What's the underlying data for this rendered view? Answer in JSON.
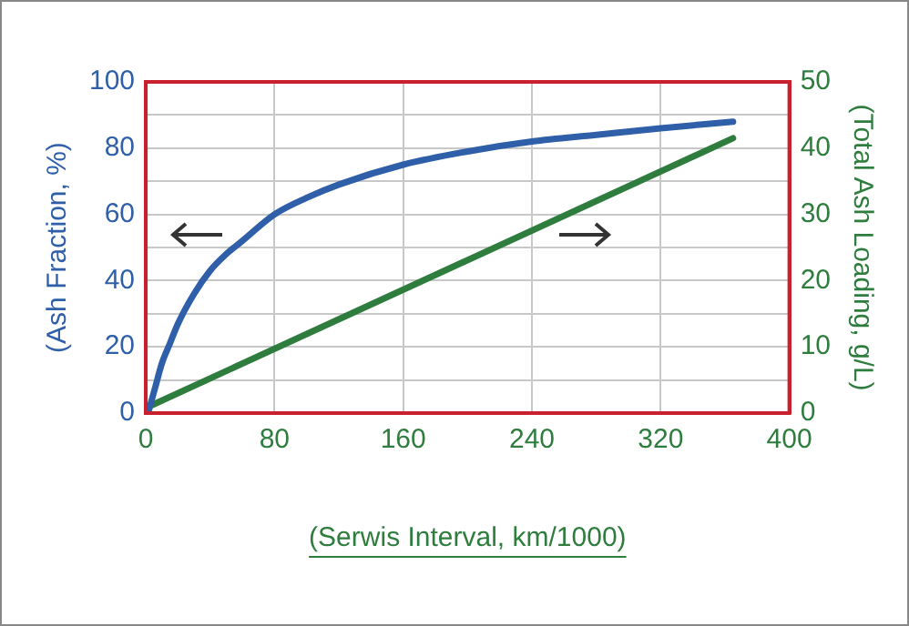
{
  "chart_data": {
    "type": "line",
    "xlabel": "(Serwis Interval, km/1000)",
    "ylabel": "(Ash Fraction, %)",
    "y2label": "(Total Ash Loading, g/L)",
    "xlim": [
      0,
      400
    ],
    "xticks": [
      0,
      80,
      160,
      240,
      320,
      400
    ],
    "ylim": [
      0,
      100
    ],
    "yticks": [
      0,
      {
        "value": 10,
        "label": null
      },
      20,
      {
        "value": 30,
        "label": null
      },
      40,
      {
        "value": 50,
        "label": null
      },
      60,
      {
        "value": 70,
        "label": null
      },
      80,
      {
        "value": 90,
        "label": null
      },
      100
    ],
    "y2lim": [
      0,
      50
    ],
    "y2ticks": [
      0,
      10,
      20,
      30,
      40,
      50
    ],
    "grid": true,
    "marker": "none",
    "line_style": "solid",
    "series": [
      {
        "color": "#2e5fa8",
        "x": [
          2,
          6,
          10,
          15,
          20,
          30,
          40,
          50,
          60,
          80,
          100,
          120,
          160,
          200,
          240,
          280,
          320,
          365
        ],
        "values": [
          1,
          8,
          15,
          21,
          27,
          36,
          43,
          48,
          52,
          60,
          65,
          69,
          75,
          79,
          82,
          84,
          86,
          88
        ]
      },
      {
        "color": "#2e7d3e",
        "axis": "y2",
        "x": [
          2,
          365
        ],
        "values": [
          1,
          41.5
        ]
      }
    ]
  }
}
